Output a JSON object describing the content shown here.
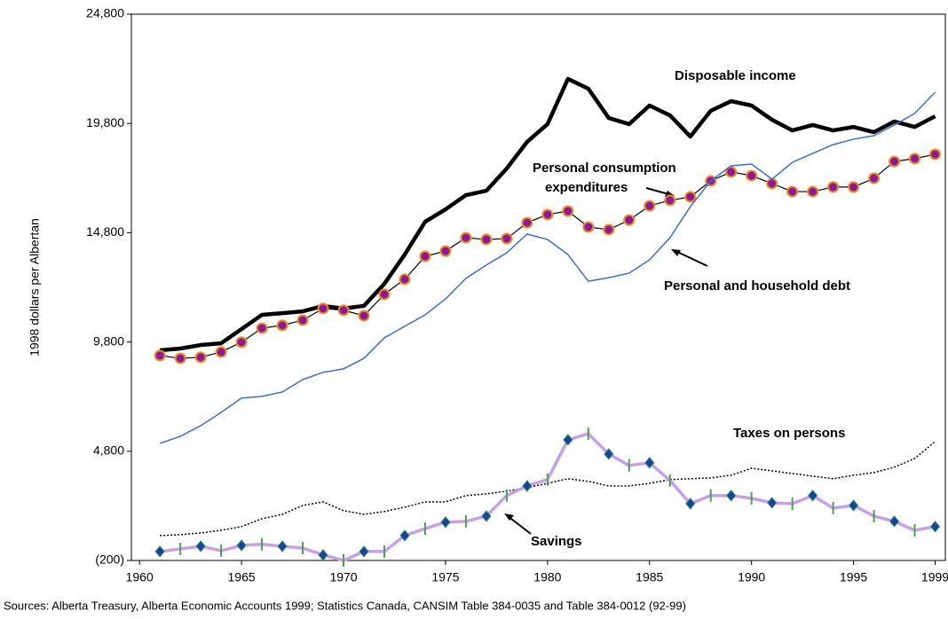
{
  "chart_data": {
    "type": "line",
    "y_label": "1998 dollars per Albertan",
    "source": "Sources: Alberta Treasury, Alberta Economic Accounts 1999; Statistics Canada, CANSIM Table 384-0035 and Table 384-0012 (92-99)",
    "x": [
      1961,
      1962,
      1963,
      1964,
      1965,
      1966,
      1967,
      1968,
      1969,
      1970,
      1971,
      1972,
      1973,
      1974,
      1975,
      1976,
      1977,
      1978,
      1979,
      1980,
      1981,
      1982,
      1983,
      1984,
      1985,
      1986,
      1987,
      1988,
      1989,
      1990,
      1991,
      1992,
      1993,
      1994,
      1995,
      1996,
      1997,
      1998,
      1999
    ],
    "xlim": [
      1959.6,
      1999.5
    ],
    "xticks": [
      1960,
      1965,
      1970,
      1975,
      1980,
      1985,
      1990,
      1995,
      1999
    ],
    "ylim": [
      -200,
      24800
    ],
    "yticks": [
      {
        "value": -200,
        "label": "(200)"
      },
      {
        "value": 4800,
        "label": "4,800"
      },
      {
        "value": 9800,
        "label": "9,800"
      },
      {
        "value": 14800,
        "label": "14,800"
      },
      {
        "value": 19800,
        "label": "19,800"
      },
      {
        "value": 24800,
        "label": "24,800"
      }
    ],
    "grid": false,
    "series": [
      {
        "name": "Disposable income",
        "color": "#000000",
        "style": "thick",
        "values": [
          9420,
          9500,
          9660,
          9740,
          10390,
          11040,
          11120,
          11200,
          11450,
          11330,
          11450,
          12460,
          13800,
          15300,
          15870,
          16520,
          16720,
          17740,
          18960,
          19770,
          21840,
          21390,
          20050,
          19770,
          20620,
          20170,
          19200,
          20380,
          20820,
          20620,
          19970,
          19480,
          19730,
          19480,
          19640,
          19400,
          19890,
          19640,
          20130
        ]
      },
      {
        "name": "Personal consumption expenditures",
        "color": "#000000",
        "style": "circles",
        "values": [
          9180,
          9050,
          9100,
          9340,
          9790,
          10430,
          10560,
          10800,
          11330,
          11250,
          11000,
          11980,
          12670,
          13720,
          13960,
          14570,
          14490,
          14530,
          15260,
          15630,
          15790,
          15060,
          14940,
          15380,
          16030,
          16280,
          16440,
          17170,
          17580,
          17410,
          17050,
          16680,
          16680,
          16890,
          16890,
          17290,
          18060,
          18190,
          18390
        ]
      },
      {
        "name": "Personal and household debt",
        "color": "#3a6fd8",
        "style": "thin",
        "values": [
          5160,
          5480,
          5970,
          6580,
          7230,
          7310,
          7510,
          8080,
          8410,
          8570,
          9050,
          9990,
          10520,
          11040,
          11770,
          12710,
          13320,
          13880,
          14740,
          14490,
          13800,
          12580,
          12740,
          12950,
          13560,
          14570,
          15990,
          17170,
          17860,
          17940,
          17250,
          18020,
          18430,
          18830,
          19080,
          19240,
          19730,
          20260,
          21230
        ]
      },
      {
        "name": "Taxes on persons",
        "color": "#000000",
        "style": "dotted",
        "values": [
          940,
          980,
          1060,
          1180,
          1350,
          1710,
          1910,
          2320,
          2480,
          2080,
          1910,
          2040,
          2240,
          2480,
          2480,
          2770,
          2850,
          2970,
          3130,
          3330,
          3540,
          3420,
          3210,
          3210,
          3330,
          3500,
          3540,
          3580,
          3700,
          4020,
          3900,
          3780,
          3660,
          3540,
          3700,
          3820,
          4070,
          4470,
          5240
        ]
      },
      {
        "name": "Savings",
        "color": "#c8a0e8",
        "style": "diamonds",
        "values": [
          210,
          330,
          450,
          250,
          490,
          540,
          450,
          370,
          50,
          -200,
          210,
          210,
          940,
          1260,
          1550,
          1590,
          1830,
          2770,
          3210,
          3500,
          5320,
          5600,
          4670,
          4150,
          4270,
          3460,
          2400,
          2770,
          2770,
          2640,
          2440,
          2400,
          2770,
          2200,
          2320,
          1830,
          1590,
          1180,
          1350
        ]
      }
    ]
  }
}
